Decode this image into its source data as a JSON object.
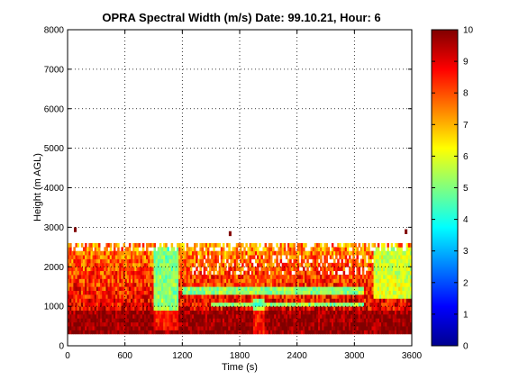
{
  "chart_data": {
    "type": "heatmap",
    "title": "OPRA Spectral Width (m/s)  Date: 99.10.21, Hour: 6",
    "xlabel": "Time (s)",
    "ylabel": "Height (m AGL)",
    "xlim": [
      0,
      3600
    ],
    "ylim": [
      0,
      8000
    ],
    "x_ticks": [
      "0",
      "600",
      "1200",
      "1800",
      "2400",
      "3000",
      "3600"
    ],
    "y_ticks": [
      "0",
      "1000",
      "2000",
      "3000",
      "4000",
      "5000",
      "6000",
      "7000",
      "8000"
    ],
    "grid": true,
    "colorbar": {
      "colormap": "jet",
      "range": [
        0,
        10
      ],
      "ticks": [
        "0",
        "1",
        "2",
        "3",
        "4",
        "5",
        "6",
        "7",
        "8",
        "9",
        "10"
      ]
    },
    "data_extent": {
      "x": [
        0,
        3600
      ],
      "height_range": [
        300,
        2550
      ],
      "x_bin": 20,
      "height_bin": 100
    },
    "features": [
      {
        "description": "low-width band",
        "x_range": [
          900,
          1150
        ],
        "height_range": [
          400,
          2500
        ],
        "value": 4
      },
      {
        "description": "low-width band",
        "x_range": [
          3200,
          3600
        ],
        "height_range": [
          1200,
          2500
        ],
        "value": 5
      },
      {
        "description": "cyan layer",
        "x_range": [
          1200,
          3100
        ],
        "height_range": [
          1300,
          1500
        ],
        "value": 4
      },
      {
        "description": "cyan layer",
        "x_range": [
          1500,
          3100
        ],
        "height_range": [
          1000,
          1100
        ],
        "value": 4
      },
      {
        "description": "sloping low-width streak",
        "x_range": [
          1950,
          2050
        ],
        "height_range": [
          300,
          1200
        ],
        "value": 4
      },
      {
        "description": "high-width lower layer",
        "x_range": [
          0,
          3600
        ],
        "height_range": [
          300,
          900
        ],
        "value": 10
      }
    ],
    "isolated_points": [
      {
        "x": 80,
        "height": 2900,
        "value": 10
      },
      {
        "x": 1700,
        "height": 2800,
        "value": 10
      },
      {
        "x": 3540,
        "height": 2850,
        "value": 10
      }
    ]
  }
}
